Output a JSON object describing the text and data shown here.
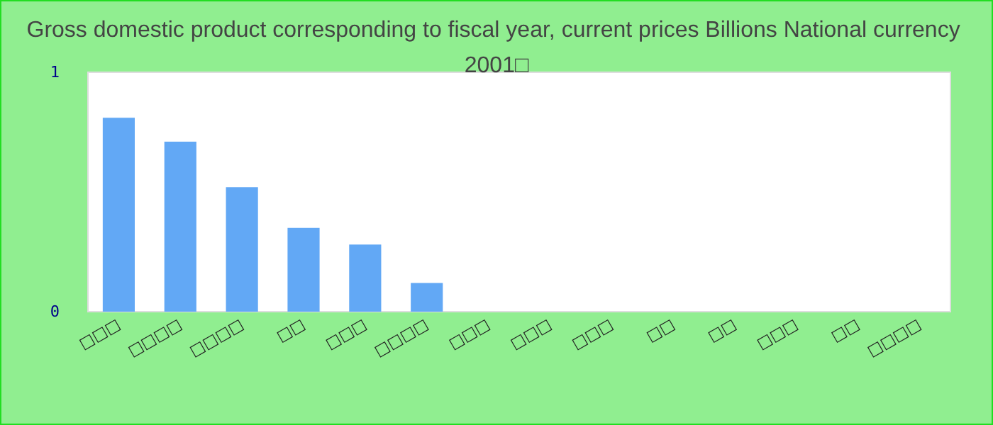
{
  "chart_data": {
    "type": "bar",
    "title": "Gross domestic product corresponding to fiscal year, current prices Billions National currency 2001□",
    "categories": [
      "□□□",
      "□□□□",
      "□□□□",
      "□□",
      "□□□",
      "□□□□",
      "□□□",
      "□□□",
      "□□□",
      "□□",
      "□□",
      "□□□",
      "□□",
      "□□□□"
    ],
    "values": [
      0.81,
      0.71,
      0.52,
      0.35,
      0.28,
      0.12,
      0,
      0,
      0,
      0,
      0,
      0,
      0,
      0
    ],
    "color": "#62a8f5",
    "ylim": [
      0,
      1
    ],
    "yticks": [
      0,
      1
    ],
    "grid": false
  }
}
